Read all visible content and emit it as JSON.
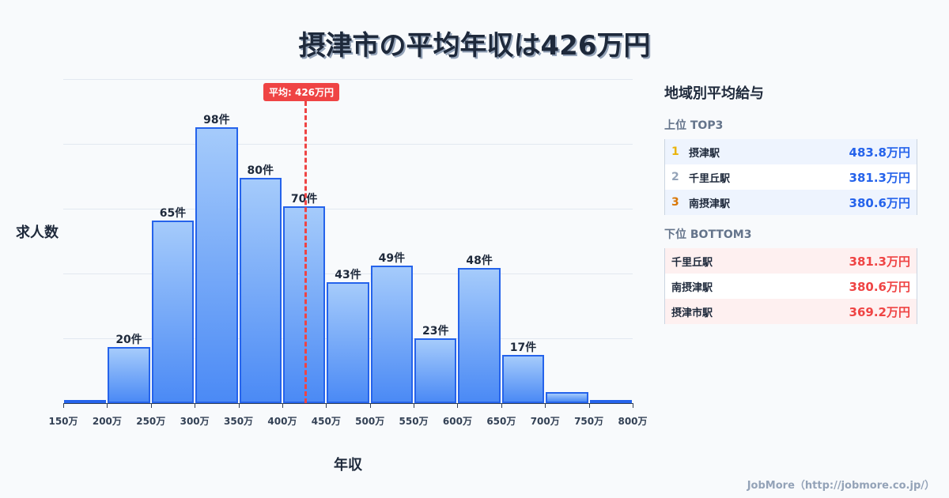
{
  "title": "摂津市の平均年収は426万円",
  "chart_data": {
    "type": "bar",
    "title": "摂津市の平均年収は426万円",
    "xlabel": "年収",
    "ylabel": "求人数",
    "categories": [
      "150-200万",
      "200-250万",
      "250-300万",
      "300-350万",
      "350-400万",
      "400-450万",
      "450-500万",
      "500-550万",
      "550-600万",
      "600-650万",
      "650-700万",
      "700-750万",
      "750-800万"
    ],
    "values": [
      1,
      20,
      65,
      98,
      80,
      70,
      43,
      49,
      23,
      48,
      17,
      4,
      1
    ],
    "labels": [
      "",
      "20件",
      "65件",
      "98件",
      "80件",
      "70件",
      "43件",
      "49件",
      "23件",
      "48件",
      "17件",
      "",
      ""
    ],
    "x_ticks": [
      "150万",
      "200万",
      "250万",
      "300万",
      "350万",
      "400万",
      "450万",
      "500万",
      "550万",
      "600万",
      "650万",
      "700万",
      "750万",
      "800万"
    ],
    "mean": {
      "value": 426,
      "label": "平均: 426万円"
    },
    "grid": true,
    "ylim": [
      0,
      115
    ]
  },
  "axes": {
    "xlabel": "年収",
    "ylabel": "求人数"
  },
  "panel": {
    "title": "地域別平均給与",
    "top": {
      "heading": "上位 TOP3",
      "rows": [
        {
          "rank": "1",
          "name": "摂津駅",
          "value": "483.8万円",
          "rank_color": "#eab308"
        },
        {
          "rank": "2",
          "name": "千里丘駅",
          "value": "381.3万円",
          "rank_color": "#94a3b8"
        },
        {
          "rank": "3",
          "name": "南摂津駅",
          "value": "380.6万円",
          "rank_color": "#d97706"
        }
      ]
    },
    "bottom": {
      "heading": "下位 BOTTOM3",
      "rows": [
        {
          "name": "千里丘駅",
          "value": "381.3万円"
        },
        {
          "name": "南摂津駅",
          "value": "380.6万円"
        },
        {
          "name": "摂津市駅",
          "value": "369.2万円"
        }
      ]
    }
  },
  "colors": {
    "bar_fill_top": "#a5cbfb",
    "bar_fill_bottom": "#4b8af5",
    "bar_border": "#2563eb",
    "mean": "#ef4444",
    "top_value": "#2563eb",
    "bottom_value": "#ef4444"
  },
  "footer": "JobMore（http://jobmore.co.jp/）"
}
